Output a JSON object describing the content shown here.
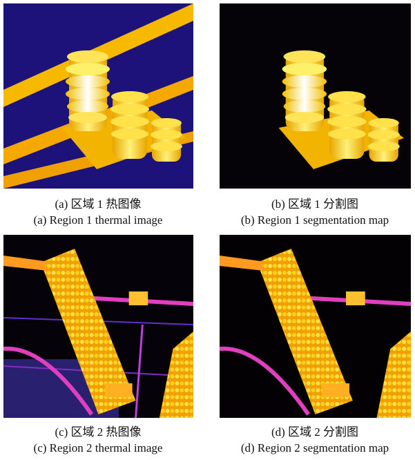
{
  "panels": [
    {
      "caption_cn": "(a) 区域 1 热图像",
      "caption_en": "(a) Region 1 thermal image"
    },
    {
      "caption_cn": "(b) 区域 1 分割图",
      "caption_en": "(b) Region 1 segmentation map"
    },
    {
      "caption_cn": "(c) 区域 2 热图像",
      "caption_en": "(c) Region 2 thermal image"
    },
    {
      "caption_cn": "(d) 区域 2 分割图",
      "caption_en": "(d) Region 2 segmentation map"
    }
  ]
}
